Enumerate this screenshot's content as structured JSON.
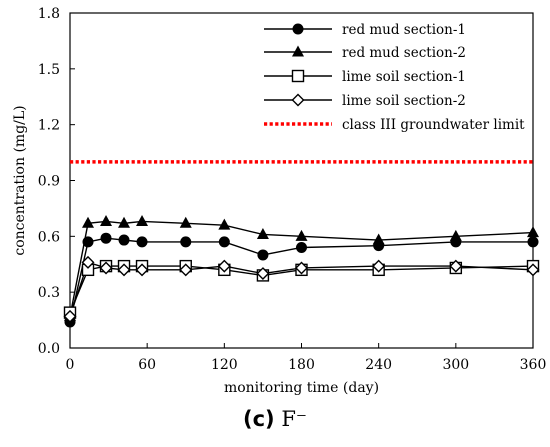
{
  "chart_data": {
    "type": "line",
    "xlabel": "monitoring time (day)",
    "ylabel": "concentration (mg/L)",
    "xlim": [
      0,
      360
    ],
    "ylim": [
      0.0,
      1.8
    ],
    "xticks": [
      0,
      60,
      120,
      180,
      240,
      300,
      360
    ],
    "yticks": [
      0.0,
      0.3,
      0.6,
      0.9,
      1.2,
      1.5,
      1.8
    ],
    "ytick_labels": [
      "0.0",
      "0.3",
      "0.6",
      "0.9",
      "1.2",
      "1.5",
      "1.8"
    ],
    "legend_position": "top-right",
    "series": [
      {
        "name": "red mud section-1",
        "marker": "circle-filled",
        "x": [
          0,
          14,
          28,
          42,
          56,
          90,
          120,
          150,
          180,
          240,
          300,
          360
        ],
        "y": [
          0.14,
          0.57,
          0.59,
          0.58,
          0.57,
          0.57,
          0.57,
          0.5,
          0.54,
          0.55,
          0.57,
          0.57
        ]
      },
      {
        "name": "red mud section-2",
        "marker": "triangle-filled",
        "x": [
          0,
          14,
          28,
          42,
          56,
          90,
          120,
          150,
          180,
          240,
          300,
          360
        ],
        "y": [
          0.17,
          0.67,
          0.68,
          0.67,
          0.68,
          0.67,
          0.66,
          0.61,
          0.6,
          0.58,
          0.6,
          0.62
        ]
      },
      {
        "name": "lime soil section-1",
        "marker": "square-open",
        "x": [
          0,
          14,
          28,
          42,
          56,
          90,
          120,
          150,
          180,
          240,
          300,
          360
        ],
        "y": [
          0.19,
          0.42,
          0.44,
          0.44,
          0.44,
          0.44,
          0.42,
          0.39,
          0.42,
          0.42,
          0.43,
          0.44
        ]
      },
      {
        "name": "lime soil section-2",
        "marker": "diamond-open",
        "x": [
          0,
          14,
          28,
          42,
          56,
          90,
          120,
          150,
          180,
          240,
          300,
          360
        ],
        "y": [
          0.17,
          0.46,
          0.43,
          0.42,
          0.42,
          0.42,
          0.44,
          0.4,
          0.43,
          0.44,
          0.44,
          0.42
        ]
      }
    ],
    "reference_line": {
      "name": "class III groundwater limit",
      "y": 1.0,
      "color": "#ff0000",
      "style": "dotted"
    }
  },
  "caption": {
    "label": "(c)",
    "ion": "F⁻"
  }
}
